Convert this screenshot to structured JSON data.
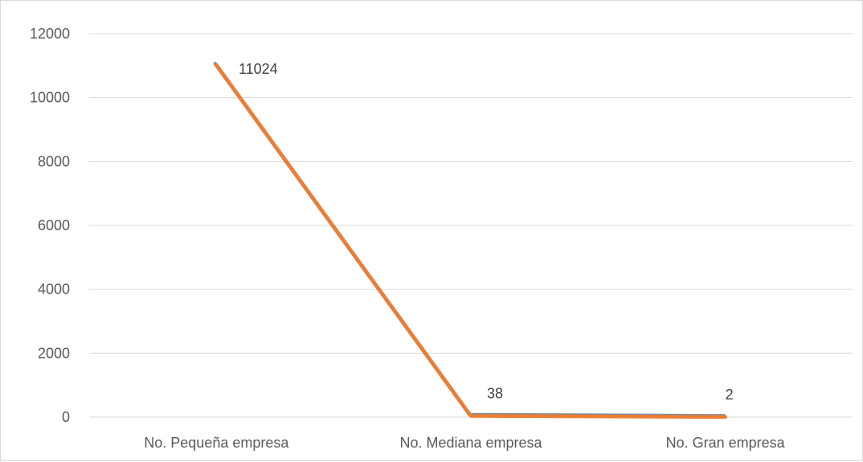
{
  "chart_data": {
    "type": "line",
    "categories": [
      "No. Pequeña empresa",
      "No. Mediana empresa",
      "No. Gran empresa"
    ],
    "series": [
      {
        "values": [
          11024,
          38,
          2
        ],
        "color": "#ED7D31",
        "shadow_color": "#7F8FA6"
      }
    ],
    "data_labels": [
      "11024",
      "38",
      "2"
    ],
    "yticks": [
      0,
      2000,
      4000,
      6000,
      8000,
      10000,
      12000
    ],
    "ytick_labels": [
      "0",
      "2000",
      "4000",
      "6000",
      "8000",
      "10000",
      "12000"
    ],
    "ylim": [
      0,
      12000
    ],
    "title": "",
    "xlabel": "",
    "ylabel": "",
    "grid": true,
    "legend": "none",
    "gridline_color": "#d9d9d9"
  }
}
